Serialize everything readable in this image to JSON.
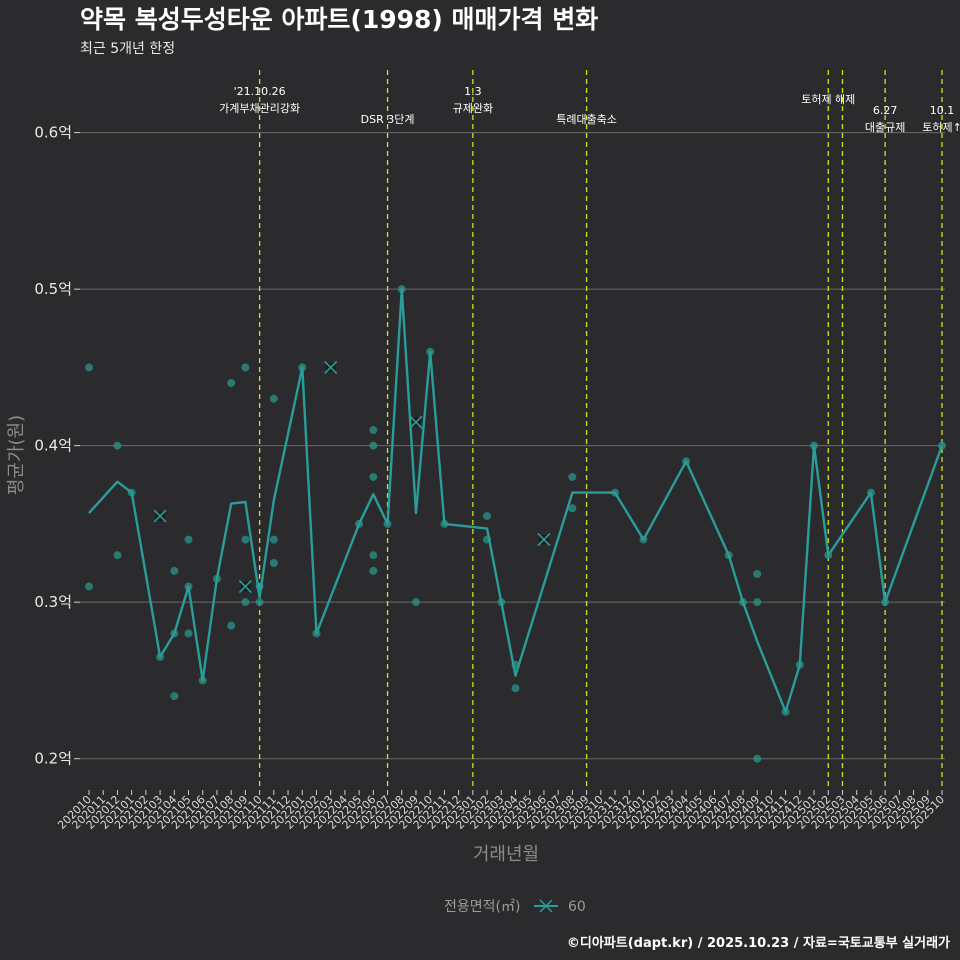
{
  "title": "약목 복성두성타운 아파트(1998) 매매가격 변화",
  "subtitle": "최근 5개년 한정",
  "credit": "©디아파트(dapt.kr) / 2025.10.23 / 자료=국토교통부 실거래가",
  "colors": {
    "background": "#2b2b2d",
    "series": "#2a9d9a",
    "point": "#2a8f86",
    "event_line": "#d4e21e",
    "grid": "#6a6a6a",
    "star_point": "#111111"
  },
  "chart_data": {
    "type": "line",
    "title": "약목 복성두성타운 아파트(1998) 매매가격 변화",
    "xlabel": "거래년월",
    "ylabel": "평균가(원)",
    "ylim": [
      0.18,
      0.64
    ],
    "y_ticks": [
      0.2,
      0.3,
      0.4,
      0.5,
      0.6
    ],
    "y_tick_labels": [
      "0.2억",
      "0.3억",
      "0.4억",
      "0.5억",
      "0.6억"
    ],
    "months": [
      "202010",
      "202011",
      "202012",
      "202101",
      "202102",
      "202103",
      "202104",
      "202105",
      "202106",
      "202107",
      "202108",
      "202109",
      "202110",
      "202111",
      "202112",
      "202201",
      "202202",
      "202203",
      "202204",
      "202205",
      "202206",
      "202207",
      "202208",
      "202209",
      "202210",
      "202211",
      "202212",
      "202301",
      "202302",
      "202303",
      "202304",
      "202305",
      "202306",
      "202307",
      "202308",
      "202309",
      "202310",
      "202311",
      "202312",
      "202401",
      "202402",
      "202403",
      "202404",
      "202405",
      "202406",
      "202407",
      "202408",
      "202409",
      "202410",
      "202411",
      "202412",
      "202501",
      "202502",
      "202503",
      "202504",
      "202505",
      "202506",
      "202507",
      "202508",
      "202509",
      "202510"
    ],
    "legend_title": "전용면적(㎡)",
    "series": [
      {
        "name": "60",
        "line": [
          [
            "202010",
            0.357
          ],
          [
            "202012",
            0.377
          ],
          [
            "202101",
            0.37
          ],
          [
            "202103",
            0.265
          ],
          [
            "202104",
            0.28
          ],
          [
            "202105",
            0.31
          ],
          [
            "202106",
            0.25
          ],
          [
            "202107",
            0.315
          ],
          [
            "202108",
            0.363
          ],
          [
            "202109",
            0.364
          ],
          [
            "202110",
            0.303
          ],
          [
            "202111",
            0.365
          ],
          [
            "202201",
            0.45
          ],
          [
            "202202",
            0.28
          ],
          [
            "202205",
            0.35
          ],
          [
            "202206",
            0.369
          ],
          [
            "202207",
            0.35
          ],
          [
            "202208",
            0.5
          ],
          [
            "202209",
            0.357
          ],
          [
            "202210",
            0.46
          ],
          [
            "202211",
            0.35
          ],
          [
            "202302",
            0.347
          ],
          [
            "202303",
            0.3
          ],
          [
            "202304",
            0.253
          ],
          [
            "202308",
            0.37
          ],
          [
            "202311",
            0.37
          ],
          [
            "202401",
            0.34
          ],
          [
            "202404",
            0.39
          ],
          [
            "202407",
            0.33
          ],
          [
            "202408",
            0.3
          ],
          [
            "202409",
            0.275
          ],
          [
            "202411",
            0.23
          ],
          [
            "202412",
            0.26
          ],
          [
            "202501",
            0.4
          ],
          [
            "202502",
            0.33
          ],
          [
            "202505",
            0.37
          ],
          [
            "202506",
            0.3
          ],
          [
            "202510",
            0.4
          ]
        ],
        "points": [
          [
            "202010",
            0.45
          ],
          [
            "202010",
            0.31
          ],
          [
            "202012",
            0.4
          ],
          [
            "202012",
            0.33
          ],
          [
            "202101",
            0.37
          ],
          [
            "202103",
            0.265
          ],
          [
            "202104",
            0.32
          ],
          [
            "202104",
            0.28
          ],
          [
            "202104",
            0.24
          ],
          [
            "202105",
            0.34
          ],
          [
            "202105",
            0.31
          ],
          [
            "202105",
            0.28
          ],
          [
            "202106",
            0.25
          ],
          [
            "202107",
            0.315
          ],
          [
            "202108",
            0.44
          ],
          [
            "202108",
            0.285
          ],
          [
            "202109",
            0.45
          ],
          [
            "202109",
            0.34
          ],
          [
            "202109",
            0.3
          ],
          [
            "202110",
            0.31
          ],
          [
            "202110",
            0.3
          ],
          [
            "202111",
            0.43
          ],
          [
            "202111",
            0.34
          ],
          [
            "202111",
            0.325
          ],
          [
            "202201",
            0.45
          ],
          [
            "202202",
            0.28
          ],
          [
            "202205",
            0.35
          ],
          [
            "202206",
            0.41
          ],
          [
            "202206",
            0.4
          ],
          [
            "202206",
            0.38
          ],
          [
            "202206",
            0.33
          ],
          [
            "202206",
            0.32
          ],
          [
            "202207",
            0.35
          ],
          [
            "202208",
            0.5
          ],
          [
            "202209",
            0.3
          ],
          [
            "202210",
            0.46
          ],
          [
            "202211",
            0.35
          ],
          [
            "202302",
            0.355
          ],
          [
            "202302",
            0.34
          ],
          [
            "202303",
            0.3
          ],
          [
            "202304",
            0.26
          ],
          [
            "202304",
            0.245
          ],
          [
            "202308",
            0.38
          ],
          [
            "202308",
            0.36
          ],
          [
            "202311",
            0.37
          ],
          [
            "202401",
            0.34
          ],
          [
            "202404",
            0.39
          ],
          [
            "202407",
            0.33
          ],
          [
            "202408",
            0.3
          ],
          [
            "202409",
            0.318
          ],
          [
            "202409",
            0.3
          ],
          [
            "202409",
            0.2
          ],
          [
            "202411",
            0.23
          ],
          [
            "202412",
            0.26
          ],
          [
            "202501",
            0.4
          ],
          [
            "202502",
            0.33
          ],
          [
            "202505",
            0.37
          ],
          [
            "202506",
            0.3
          ],
          [
            "202510",
            0.4
          ]
        ],
        "x_markers": [
          [
            "202103",
            0.355
          ],
          [
            "202109",
            0.31
          ],
          [
            "202203",
            0.45
          ],
          [
            "202209",
            0.415
          ],
          [
            "202306",
            0.34
          ]
        ]
      }
    ],
    "events": [
      {
        "month": "202110",
        "lines": [
          "'21.10.26",
          "가계부채관리강화"
        ]
      },
      {
        "month": "202207",
        "lines": [
          "DSR 3단계"
        ]
      },
      {
        "month": "202301",
        "lines": [
          "1.3",
          "규제완화"
        ]
      },
      {
        "month": "202309",
        "lines": [
          "특례대출축소"
        ]
      },
      {
        "month": "202502",
        "lines": [
          "토허제 해제"
        ]
      },
      {
        "month": "202503",
        "lines": [
          ""
        ]
      },
      {
        "month": "202506",
        "lines": [
          "6.27",
          "대출규제"
        ]
      },
      {
        "month": "202510",
        "lines": [
          "10.1",
          "토허제↑"
        ]
      }
    ]
  }
}
